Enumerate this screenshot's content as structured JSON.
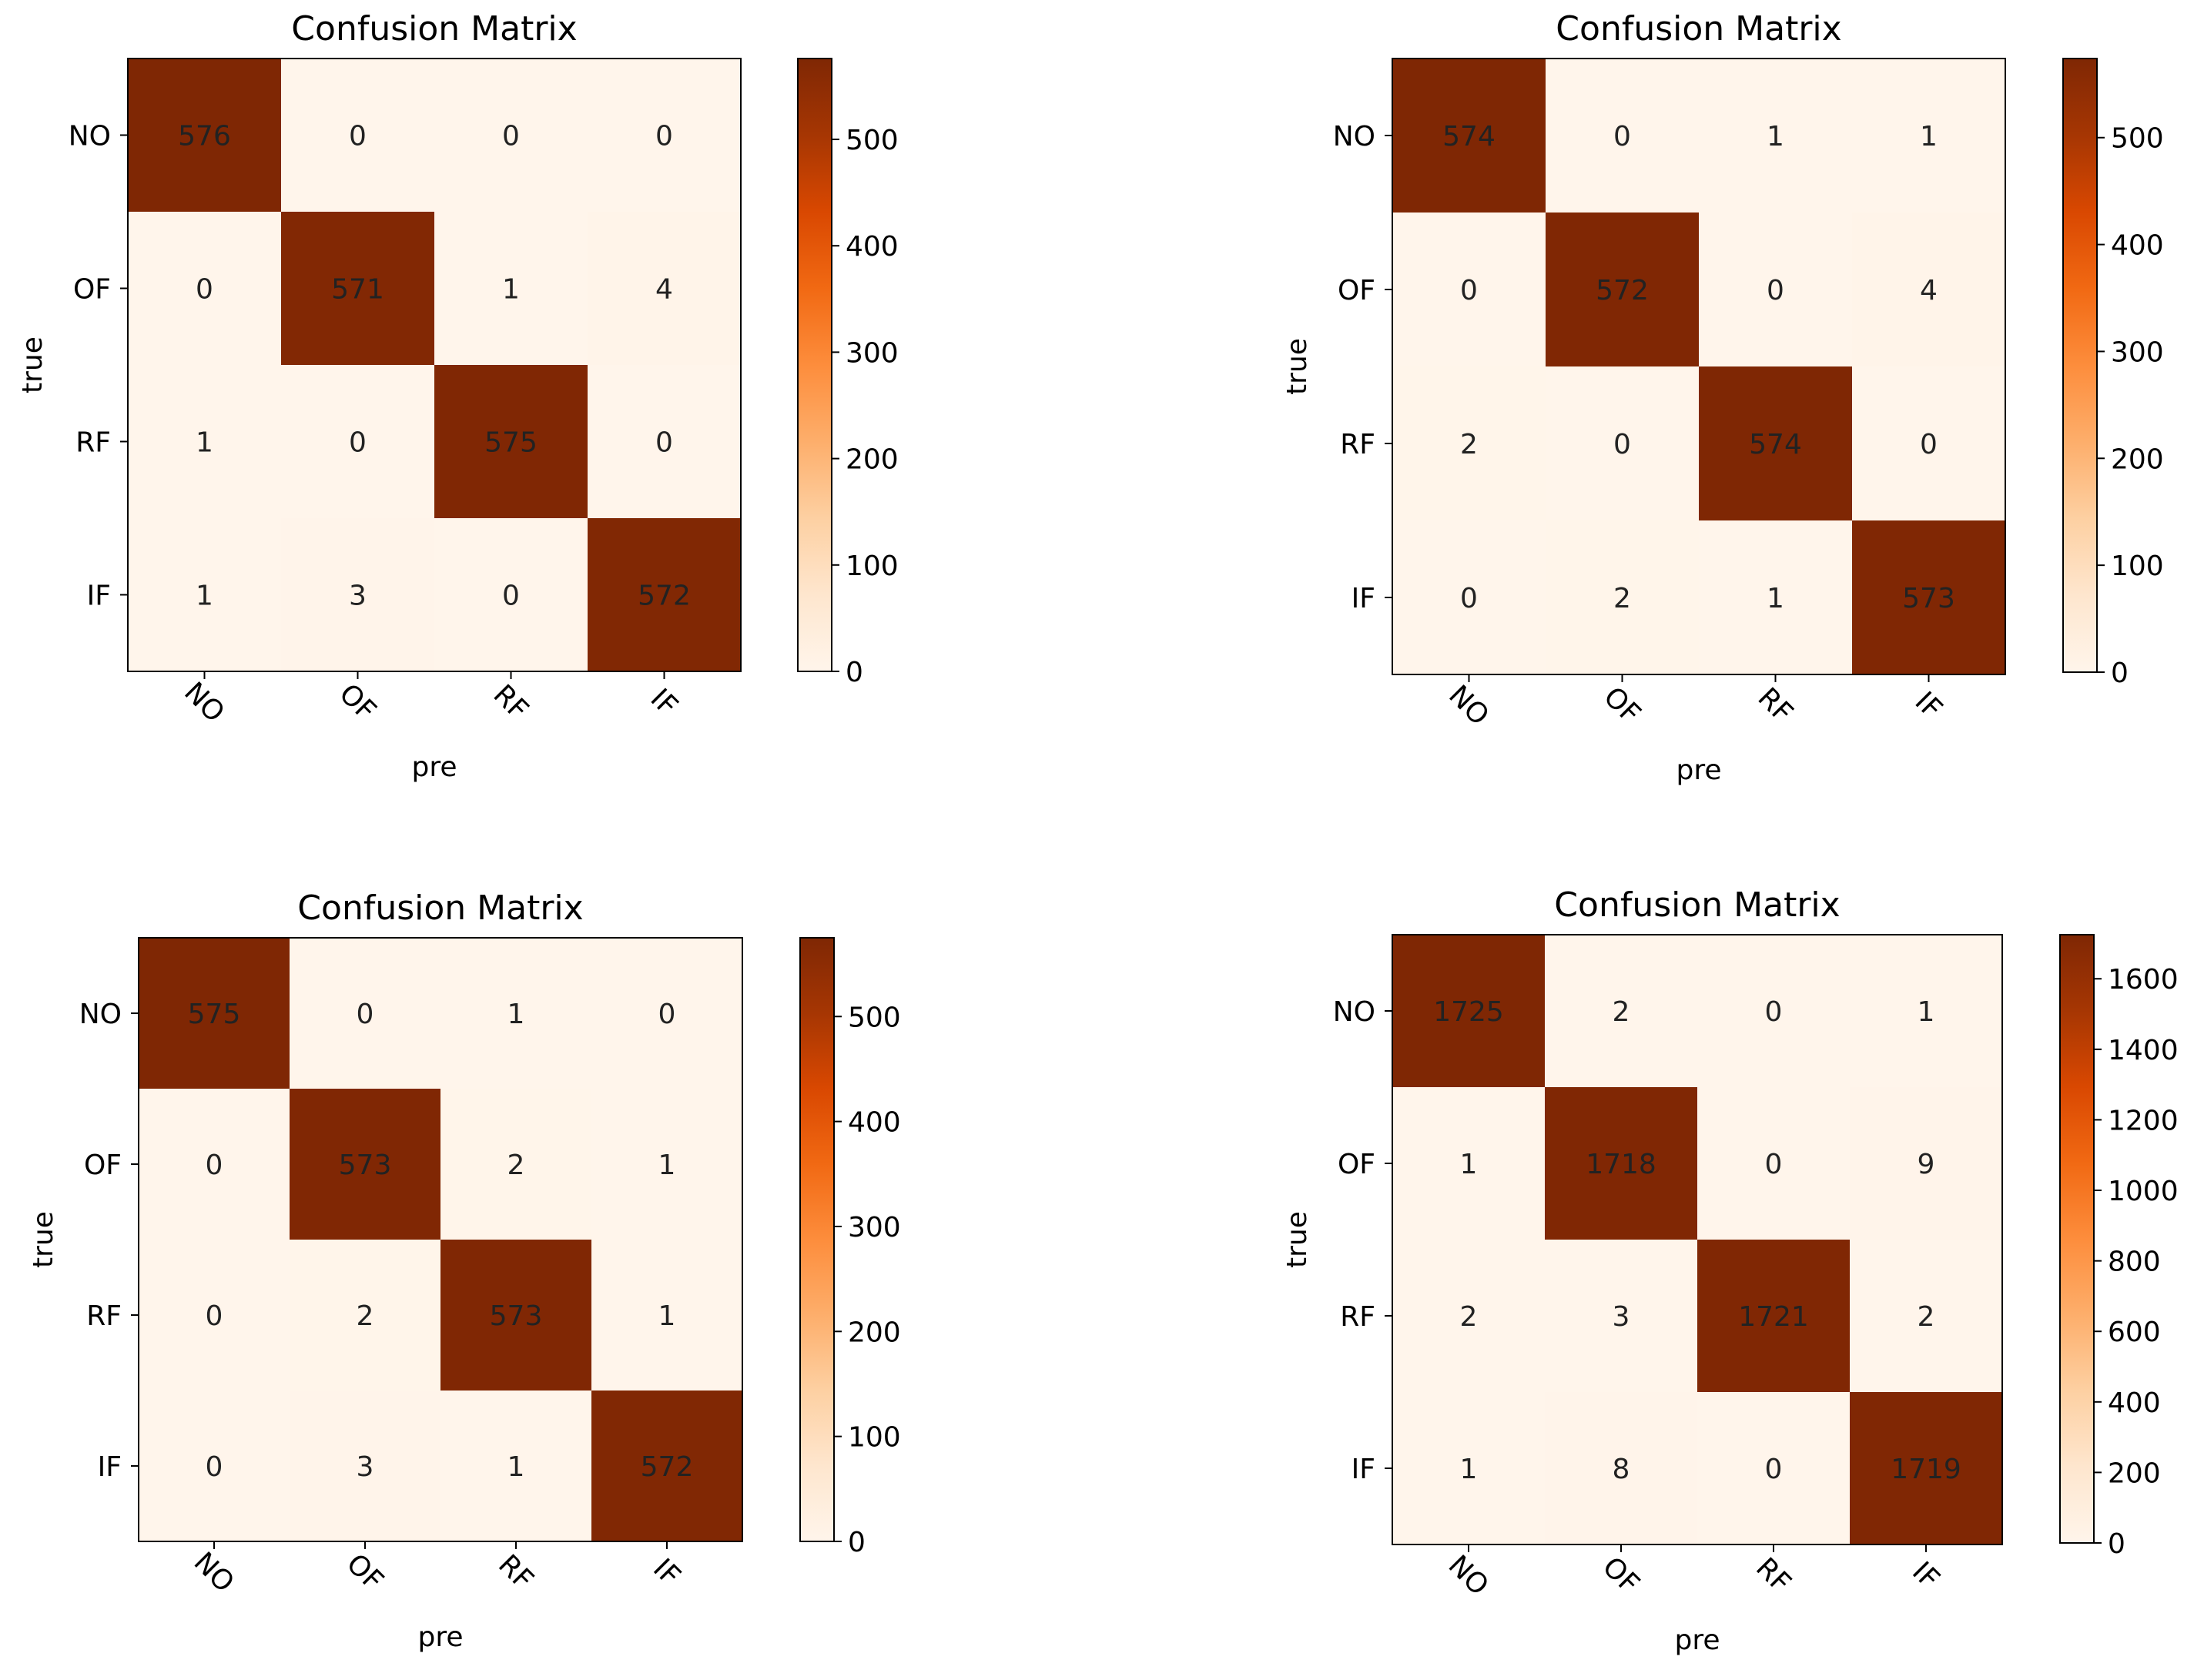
{
  "chart_data": [
    {
      "type": "heatmap",
      "title": "Confusion Matrix",
      "xlabel": "pre",
      "ylabel": "true",
      "x_categories": [
        "NO",
        "OF",
        "RF",
        "IF"
      ],
      "y_categories": [
        "NO",
        "OF",
        "RF",
        "IF"
      ],
      "matrix": [
        [
          576,
          0,
          0,
          0
        ],
        [
          0,
          571,
          1,
          4
        ],
        [
          1,
          0,
          575,
          0
        ],
        [
          1,
          3,
          0,
          572
        ]
      ],
      "colorbar": {
        "min": 0,
        "max": 576,
        "ticks": [
          0,
          100,
          200,
          300,
          400,
          500
        ]
      }
    },
    {
      "type": "heatmap",
      "title": "Confusion Matrix",
      "xlabel": "pre",
      "ylabel": "true",
      "x_categories": [
        "NO",
        "OF",
        "RF",
        "IF"
      ],
      "y_categories": [
        "NO",
        "OF",
        "RF",
        "IF"
      ],
      "matrix": [
        [
          574,
          0,
          1,
          1
        ],
        [
          0,
          572,
          0,
          4
        ],
        [
          2,
          0,
          574,
          0
        ],
        [
          0,
          2,
          1,
          573
        ]
      ],
      "colorbar": {
        "min": 0,
        "max": 574,
        "ticks": [
          0,
          100,
          200,
          300,
          400,
          500
        ]
      }
    },
    {
      "type": "heatmap",
      "title": "Confusion Matrix",
      "xlabel": "pre",
      "ylabel": "true",
      "x_categories": [
        "NO",
        "OF",
        "RF",
        "IF"
      ],
      "y_categories": [
        "NO",
        "OF",
        "RF",
        "IF"
      ],
      "matrix": [
        [
          575,
          0,
          1,
          0
        ],
        [
          0,
          573,
          2,
          1
        ],
        [
          0,
          2,
          573,
          1
        ],
        [
          0,
          3,
          1,
          572
        ]
      ],
      "colorbar": {
        "min": 0,
        "max": 575,
        "ticks": [
          0,
          100,
          200,
          300,
          400,
          500
        ]
      }
    },
    {
      "type": "heatmap",
      "title": "Confusion Matrix",
      "xlabel": "pre",
      "ylabel": "true",
      "x_categories": [
        "NO",
        "OF",
        "RF",
        "IF"
      ],
      "y_categories": [
        "NO",
        "OF",
        "RF",
        "IF"
      ],
      "matrix": [
        [
          1725,
          2,
          0,
          1
        ],
        [
          1,
          1718,
          0,
          9
        ],
        [
          2,
          3,
          1721,
          2
        ],
        [
          1,
          8,
          0,
          1719
        ]
      ],
      "colorbar": {
        "min": 0,
        "max": 1725,
        "ticks": [
          0,
          200,
          400,
          600,
          800,
          1000,
          1200,
          1400,
          1600
        ]
      }
    }
  ]
}
